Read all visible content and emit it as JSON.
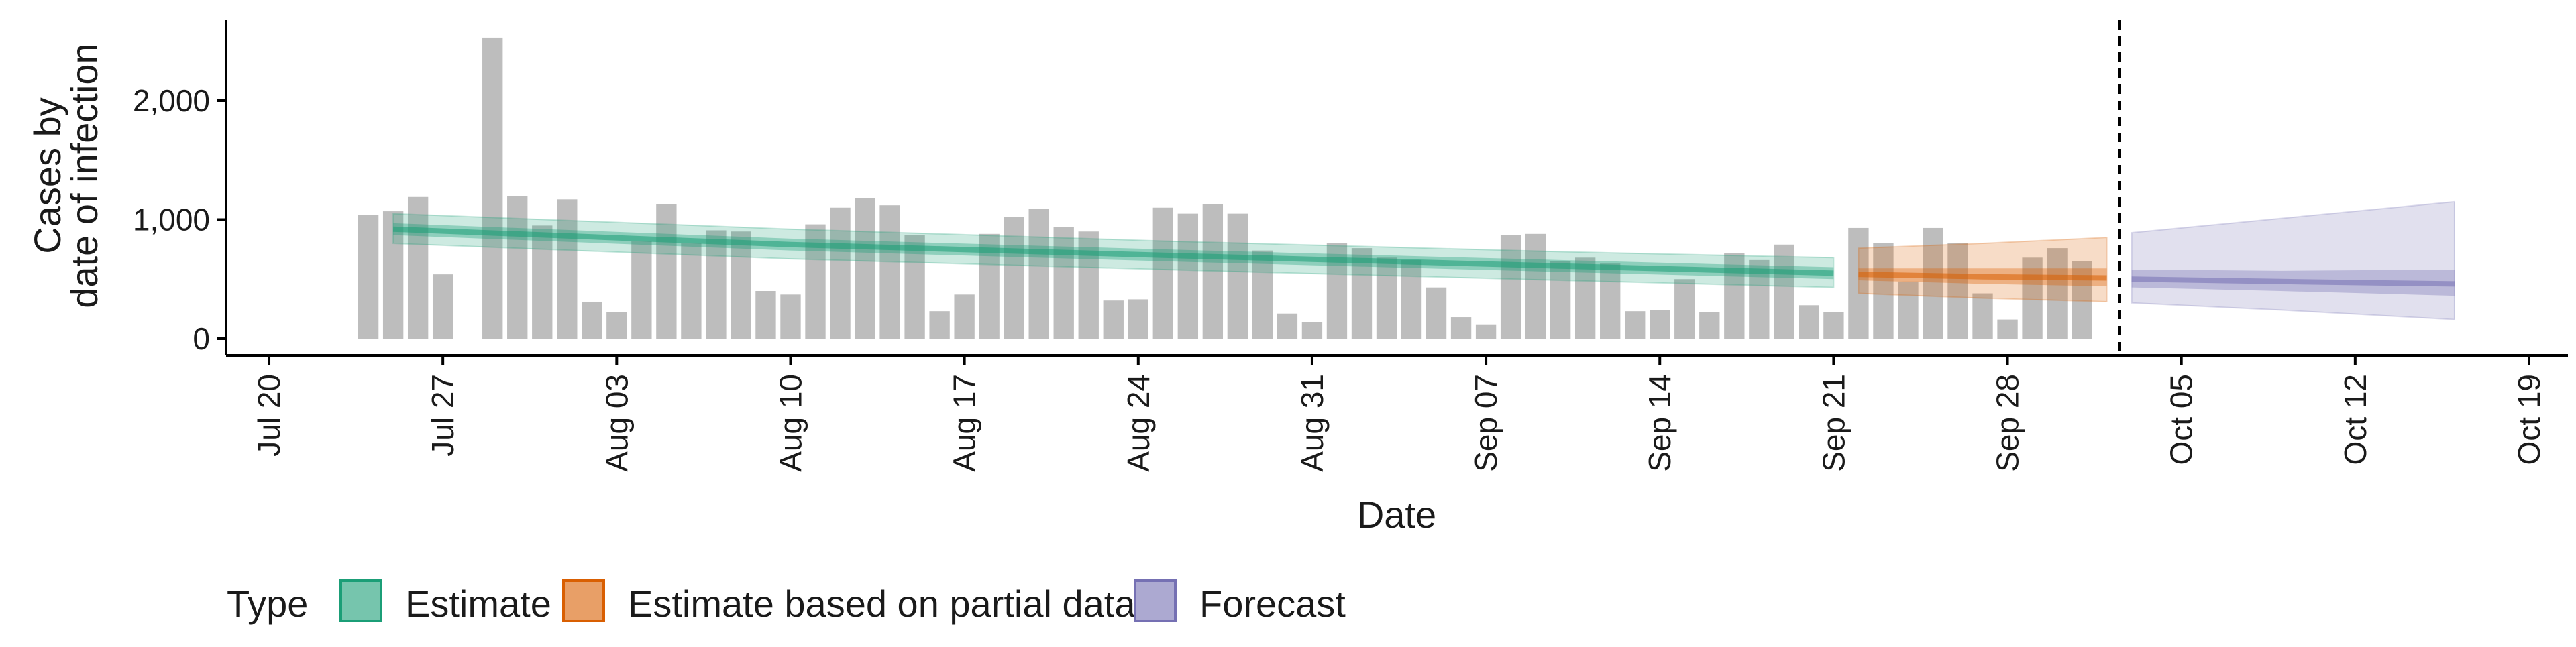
{
  "chart_data": {
    "type": "bar",
    "xlabel": "Date",
    "ylabel_lines": [
      "Cases by",
      "date of infection"
    ],
    "ylim": [
      0,
      2500
    ],
    "yticks": [
      0,
      1000,
      2000
    ],
    "ytick_labels": [
      "0",
      "1,000",
      "2,000"
    ],
    "xlim": [
      "2020-07-19",
      "2020-10-19"
    ],
    "xticks": [
      "2020-07-20",
      "2020-07-27",
      "2020-08-03",
      "2020-08-10",
      "2020-08-17",
      "2020-08-24",
      "2020-08-31",
      "2020-09-07",
      "2020-09-14",
      "2020-09-21",
      "2020-09-28",
      "2020-10-05",
      "2020-10-12",
      "2020-10-19"
    ],
    "xtick_labels": [
      "Jul 20",
      "Jul 27",
      "Aug 03",
      "Aug 10",
      "Aug 17",
      "Aug 24",
      "Aug 31",
      "Sep 07",
      "Sep 14",
      "Sep 21",
      "Sep 28",
      "Oct 05",
      "Oct 12",
      "Oct 19"
    ],
    "grid": false,
    "bars": {
      "color": "#bdbdbd",
      "dates": [
        "2020-07-24",
        "2020-07-25",
        "2020-07-26",
        "2020-07-27",
        "2020-07-28",
        "2020-07-29",
        "2020-07-30",
        "2020-07-31",
        "2020-08-01",
        "2020-08-02",
        "2020-08-03",
        "2020-08-04",
        "2020-08-05",
        "2020-08-06",
        "2020-08-07",
        "2020-08-08",
        "2020-08-09",
        "2020-08-10",
        "2020-08-11",
        "2020-08-12",
        "2020-08-13",
        "2020-08-14",
        "2020-08-15",
        "2020-08-16",
        "2020-08-17",
        "2020-08-18",
        "2020-08-19",
        "2020-08-20",
        "2020-08-21",
        "2020-08-22",
        "2020-08-23",
        "2020-08-24",
        "2020-08-25",
        "2020-08-26",
        "2020-08-27",
        "2020-08-28",
        "2020-08-29",
        "2020-08-30",
        "2020-08-31",
        "2020-09-01",
        "2020-09-02",
        "2020-09-03",
        "2020-09-04",
        "2020-09-05",
        "2020-09-06",
        "2020-09-07",
        "2020-09-08",
        "2020-09-09",
        "2020-09-10",
        "2020-09-11",
        "2020-09-12",
        "2020-09-13",
        "2020-09-14",
        "2020-09-15",
        "2020-09-16",
        "2020-09-17",
        "2020-09-18",
        "2020-09-19",
        "2020-09-20",
        "2020-09-21",
        "2020-09-22",
        "2020-09-23",
        "2020-09-24",
        "2020-09-25",
        "2020-09-26",
        "2020-09-27",
        "2020-09-28",
        "2020-09-29",
        "2020-09-30",
        "2020-10-01",
        "2020-10-02"
      ],
      "values": [
        1040,
        1070,
        1190,
        540,
        0,
        2530,
        1200,
        950,
        1170,
        310,
        220,
        820,
        1130,
        800,
        910,
        900,
        400,
        370,
        960,
        1100,
        1180,
        1120,
        870,
        230,
        370,
        880,
        1020,
        1090,
        940,
        900,
        320,
        330,
        1100,
        1050,
        1130,
        1050,
        740,
        210,
        140,
        800,
        760,
        680,
        660,
        430,
        180,
        120,
        870,
        880,
        650,
        680,
        630,
        230,
        240,
        500,
        220,
        720,
        660,
        790,
        280,
        220,
        930,
        800,
        480,
        930,
        800,
        380,
        160,
        680,
        760,
        650,
        0
      ]
    },
    "series": [
      {
        "name": "Estimate",
        "color": "#1b9e77",
        "x": [
          "2020-07-25",
          "2020-08-10",
          "2020-08-25",
          "2020-09-10",
          "2020-09-21"
        ],
        "median": [
          920,
          790,
          700,
          610,
          550
        ],
        "inner": [
          [
            870,
            970
          ],
          [
            740,
            840
          ],
          [
            650,
            750
          ],
          [
            560,
            660
          ],
          [
            500,
            600
          ]
        ],
        "outer": [
          [
            800,
            1050
          ],
          [
            670,
            920
          ],
          [
            580,
            820
          ],
          [
            490,
            730
          ],
          [
            430,
            680
          ]
        ]
      },
      {
        "name": "Estimate based on partial data",
        "color": "#d95f02",
        "x": [
          "2020-09-22",
          "2020-09-27",
          "2020-10-02"
        ],
        "median": [
          540,
          520,
          510
        ],
        "inner": [
          [
            490,
            590
          ],
          [
            460,
            590
          ],
          [
            440,
            590
          ]
        ],
        "outer": [
          [
            380,
            760
          ],
          [
            340,
            800
          ],
          [
            310,
            850
          ]
        ]
      },
      {
        "name": "Forecast",
        "color": "#7570b3",
        "x": [
          "2020-10-03",
          "2020-10-09",
          "2020-10-16"
        ],
        "median": [
          500,
          480,
          460
        ],
        "inner": [
          [
            430,
            580
          ],
          [
            400,
            570
          ],
          [
            360,
            580
          ]
        ],
        "outer": [
          [
            300,
            890
          ],
          [
            240,
            1010
          ],
          [
            160,
            1150
          ]
        ]
      }
    ],
    "vline": "2020-10-02",
    "legend": {
      "title": "Type",
      "position": "bottom",
      "items": [
        "Estimate",
        "Estimate based on partial data",
        "Forecast"
      ]
    }
  }
}
